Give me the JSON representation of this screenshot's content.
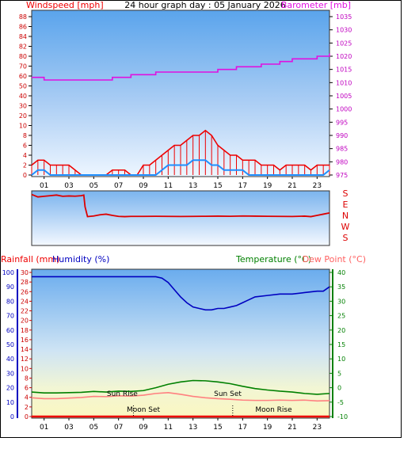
{
  "header": {
    "title": "24 hour graph day : 05 January 2026",
    "left_label": "Windspeed [mph]",
    "right_label": "Barometer [mb]"
  },
  "direction_labels": [
    "S",
    "E",
    "N",
    "W",
    "S"
  ],
  "bottom_header": {
    "rainfall_label": "Rainfall (mm)",
    "humidity_label": "Humidity (%)",
    "temperature_label": "Temperature (°C)",
    "dewpoint_label": "Dew Point (°C)"
  },
  "colors": {
    "wind": "#ee0000",
    "gust": "#1f8fff",
    "barometer": "#e010e0",
    "direction": "#dd0000",
    "humidity": "#0000c0",
    "temperature": "#008000",
    "dewpoint": "#ff8080",
    "rain": "#ee0000"
  },
  "chart_data": [
    {
      "type": "line",
      "name": "wind-barometer",
      "xlabel": "",
      "x_ticks": [
        "01",
        "03",
        "05",
        "07",
        "09",
        "11",
        "13",
        "15",
        "17",
        "19",
        "21",
        "23"
      ],
      "xlim": [
        0,
        24
      ],
      "ylabel": "Windspeed [mph]",
      "ylim": [
        0,
        88
      ],
      "y_ticks": [
        0,
        2,
        4,
        6,
        8,
        10,
        20,
        30,
        40,
        50,
        60,
        70,
        80,
        82,
        84,
        86,
        88
      ],
      "y2label": "Barometer [mb]",
      "y2lim": [
        975,
        1035
      ],
      "y2_ticks": [
        975,
        980,
        985,
        990,
        995,
        1000,
        1005,
        1010,
        1015,
        1020,
        1025,
        1030,
        1035
      ],
      "series": [
        {
          "name": "Windspeed",
          "axis": "y",
          "x": [
            0,
            0.5,
            1,
            1.5,
            2,
            2.5,
            3,
            3.5,
            4,
            4.5,
            5,
            5.5,
            6,
            6.5,
            7,
            7.5,
            8,
            8.5,
            9,
            9.5,
            10,
            10.5,
            11,
            11.5,
            12,
            12.5,
            13,
            13.5,
            14,
            14.5,
            15,
            15.5,
            16,
            16.5,
            17,
            17.5,
            18,
            18.5,
            19,
            19.5,
            20,
            20.5,
            21,
            21.5,
            22,
            22.5,
            23,
            23.5,
            24
          ],
          "values": [
            2,
            3,
            3,
            2,
            2,
            2,
            2,
            1,
            0,
            0,
            0,
            0,
            0,
            1,
            1,
            1,
            0,
            0,
            2,
            2,
            3,
            4,
            5,
            6,
            6,
            7,
            8,
            8,
            9,
            8,
            6,
            5,
            4,
            4,
            3,
            3,
            3,
            2,
            2,
            2,
            1,
            2,
            2,
            2,
            2,
            1,
            2,
            2,
            2
          ]
        },
        {
          "name": "Gust",
          "axis": "y",
          "x": [
            0,
            0.5,
            1,
            1.5,
            2,
            2.5,
            3,
            3.5,
            4,
            4.5,
            5,
            5.5,
            6,
            6.5,
            7,
            7.5,
            8,
            8.5,
            9,
            9.5,
            10,
            10.5,
            11,
            11.5,
            12,
            12.5,
            13,
            13.5,
            14,
            14.5,
            15,
            15.5,
            16,
            16.5,
            17,
            17.5,
            18,
            18.5,
            19,
            19.5,
            20,
            20.5,
            21,
            21.5,
            22,
            22.5,
            23,
            23.5,
            24
          ],
          "values": [
            0,
            1,
            1,
            0,
            0,
            0,
            0,
            0,
            0,
            0,
            0,
            0,
            0,
            0,
            0,
            0,
            0,
            0,
            0,
            0,
            0,
            1,
            2,
            2,
            2,
            2,
            3,
            3,
            3,
            2,
            2,
            1,
            1,
            1,
            1,
            0,
            0,
            0,
            0,
            0,
            0,
            0,
            0,
            0,
            0,
            0,
            0,
            0,
            1
          ]
        },
        {
          "name": "Barometer",
          "axis": "y2",
          "x": [
            0,
            0.5,
            1,
            2,
            3,
            4,
            5,
            6,
            6.5,
            7,
            7.5,
            8,
            9,
            10,
            10.5,
            11,
            12,
            13,
            14,
            14.5,
            15,
            16,
            16.5,
            17,
            17.5,
            18,
            18.5,
            19,
            20,
            20.5,
            21,
            21.5,
            22,
            23,
            23.5,
            24
          ],
          "values": [
            1012,
            1012,
            1011,
            1011,
            1011,
            1011,
            1011,
            1011,
            1012,
            1012,
            1012,
            1013,
            1013,
            1014,
            1014,
            1014,
            1014,
            1014,
            1014,
            1014,
            1015,
            1015,
            1016,
            1016,
            1016,
            1016,
            1017,
            1017,
            1018,
            1018,
            1019,
            1019,
            1019,
            1020,
            1020,
            1021
          ]
        }
      ]
    },
    {
      "type": "line",
      "name": "wind-direction",
      "x_ticks": [
        "01",
        "03",
        "05",
        "07",
        "09",
        "11",
        "13",
        "15",
        "17",
        "19",
        "21",
        "23"
      ],
      "xlim": [
        0,
        24
      ],
      "y_categories": [
        "S",
        "E",
        "N",
        "W",
        "S"
      ],
      "ylim": [
        0,
        360
      ],
      "series": [
        {
          "name": "Wind Direction",
          "x": [
            0,
            0.5,
            1,
            1.5,
            2,
            2.5,
            3,
            3.5,
            4,
            4.2,
            4.3,
            4.5,
            5,
            5.5,
            6,
            6.5,
            7,
            7.5,
            8,
            9,
            10,
            11,
            12,
            13,
            14,
            15,
            16,
            17,
            18,
            19,
            20,
            21,
            22,
            22.5,
            23,
            23.5,
            24
          ],
          "values": [
            350,
            330,
            335,
            340,
            345,
            335,
            338,
            336,
            340,
            345,
            250,
            170,
            175,
            185,
            190,
            180,
            172,
            170,
            172,
            172,
            173,
            172,
            171,
            172,
            173,
            174,
            173,
            175,
            174,
            173,
            172,
            171,
            174,
            170,
            180,
            190,
            200
          ]
        }
      ]
    },
    {
      "type": "line",
      "name": "temperature-humidity-rain",
      "x_ticks": [
        "01",
        "03",
        "05",
        "07",
        "09",
        "11",
        "13",
        "15",
        "17",
        "19",
        "21",
        "23"
      ],
      "xlim": [
        0,
        24
      ],
      "rain_label": "Rainfall (mm)",
      "rain_ticks": [
        0,
        2,
        4,
        6,
        8,
        10,
        12,
        14,
        16,
        18,
        20,
        22,
        24,
        26,
        28,
        30
      ],
      "rain_lim": [
        0,
        30
      ],
      "humidity_label": "Humidity (%)",
      "humidity_ticks": [
        0,
        10,
        20,
        30,
        40,
        50,
        60,
        70,
        80,
        90,
        100
      ],
      "humidity_lim": [
        0,
        100
      ],
      "temp_label": "Temperature (°C)",
      "dew_label": "Dew Point (°C)",
      "temp_ticks": [
        -10,
        -5,
        0,
        5,
        10,
        15,
        20,
        25,
        30,
        35,
        40
      ],
      "temp_lim": [
        -10,
        40
      ],
      "annotations": [
        {
          "text": "Sun Rise",
          "x": 7.3
        },
        {
          "text": "Sun Set",
          "x": 15.8
        },
        {
          "text": "Moon Set",
          "x": 9.0
        },
        {
          "text": "Moon Rise",
          "x": 19.5
        }
      ],
      "series": [
        {
          "name": "Humidity",
          "axis": "humidity",
          "x": [
            0,
            1,
            2,
            3,
            4,
            5,
            6,
            7,
            8,
            9,
            10,
            10.5,
            11,
            11.5,
            12,
            12.5,
            13,
            13.5,
            14,
            14.5,
            15,
            15.5,
            16,
            16.5,
            17,
            17.5,
            18,
            19,
            20,
            21,
            22,
            23,
            23.5,
            24
          ],
          "values": [
            97,
            97,
            97,
            97,
            97,
            97,
            97,
            97,
            97,
            97,
            97,
            96,
            93,
            88,
            83,
            79,
            76,
            75,
            74,
            74,
            75,
            75,
            76,
            77,
            79,
            81,
            83,
            84,
            85,
            85,
            86,
            87,
            87,
            90
          ]
        },
        {
          "name": "Temperature",
          "axis": "temp",
          "x": [
            0,
            1,
            2,
            3,
            4,
            5,
            6,
            7,
            8,
            9,
            10,
            11,
            12,
            13,
            14,
            15,
            16,
            17,
            18,
            19,
            20,
            21,
            22,
            23,
            24
          ],
          "values": [
            -1.5,
            -1.8,
            -1.8,
            -1.7,
            -1.6,
            -1.3,
            -1.5,
            -1.2,
            -1.3,
            -1.0,
            0,
            1.2,
            2.0,
            2.5,
            2.4,
            2.0,
            1.4,
            0.5,
            -0.3,
            -0.8,
            -1.2,
            -1.5,
            -2.0,
            -2.3,
            -2.0
          ]
        },
        {
          "name": "Dew Point",
          "axis": "temp",
          "x": [
            0,
            1,
            2,
            3,
            4,
            5,
            6,
            7,
            8,
            9,
            10,
            11,
            12,
            13,
            14,
            15,
            16,
            17,
            18,
            19,
            20,
            21,
            22,
            23,
            24
          ],
          "values": [
            -3.5,
            -3.8,
            -3.8,
            -3.6,
            -3.4,
            -3.0,
            -3.1,
            -2.8,
            -2.9,
            -2.6,
            -2.0,
            -1.7,
            -2.3,
            -3.0,
            -3.5,
            -3.8,
            -4.0,
            -4.3,
            -4.4,
            -4.4,
            -4.3,
            -4.4,
            -4.3,
            -4.6,
            -4.5
          ]
        },
        {
          "name": "Rainfall",
          "axis": "rain",
          "x": [
            0,
            24
          ],
          "values": [
            0,
            0
          ]
        }
      ]
    }
  ]
}
